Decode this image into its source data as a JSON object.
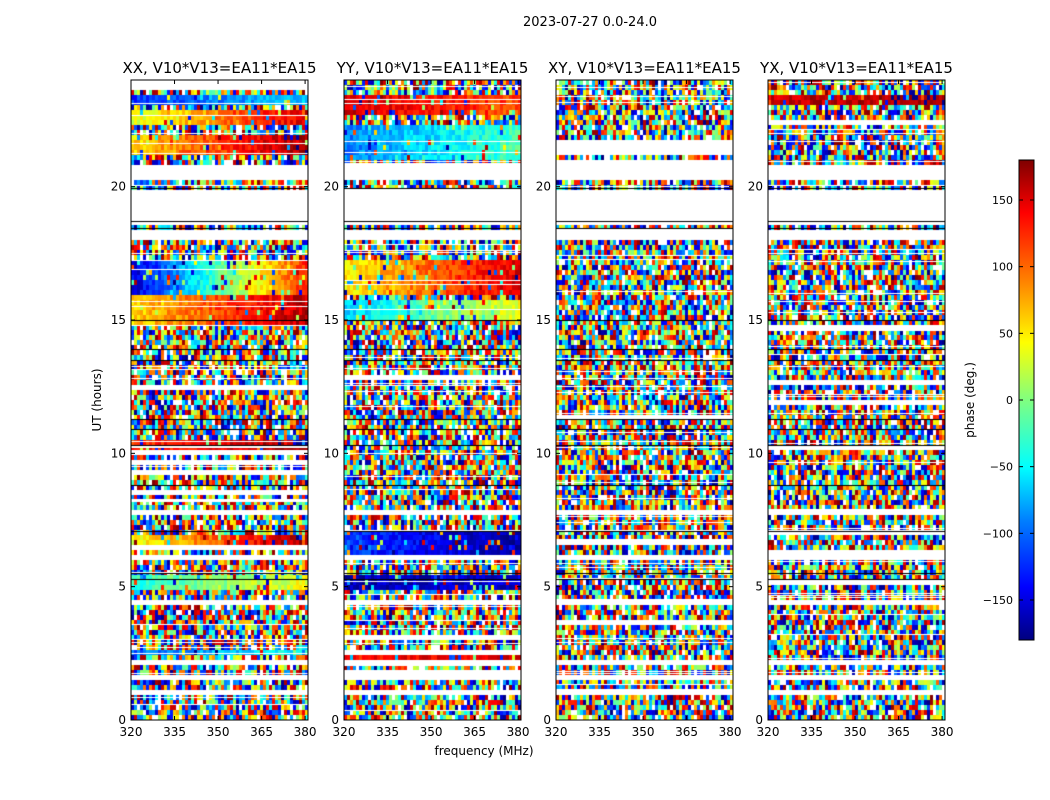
{
  "chart_data": {
    "type": "heatmap",
    "title": "2023-07-27 0.0-24.0",
    "xlabel": "frequency (MHz)",
    "ylabel": "UT (hours)",
    "xlim": [
      320,
      381
    ],
    "ylim": [
      0,
      24
    ],
    "x_ticks": [
      320,
      335,
      350,
      365,
      380
    ],
    "y_ticks": [
      0,
      5,
      10,
      15,
      20
    ],
    "colorbar": {
      "label": "phase (deg.)",
      "range": [
        -180,
        180
      ],
      "ticks": [
        -150,
        -100,
        -50,
        0,
        50,
        100,
        150
      ],
      "tick_labels": [
        "−150",
        "−100",
        "−50",
        "0",
        "50",
        "100",
        "150"
      ],
      "colormap": "jet",
      "colors": [
        "#00007f",
        "#0000ff",
        "#0080ff",
        "#00ffff",
        "#80ff80",
        "#ffff00",
        "#ff8000",
        "#ff0000",
        "#7f0000"
      ]
    },
    "gap_hours": [
      [
        18.6,
        19.9
      ],
      [
        18.0,
        18.35
      ],
      [
        20.2,
        20.75
      ],
      [
        0.9,
        1.1
      ],
      [
        1.55,
        1.7
      ],
      [
        2.05,
        2.25
      ],
      [
        7.75,
        7.9
      ],
      [
        6.0,
        6.1
      ],
      [
        4.4,
        4.55
      ]
    ],
    "rfi_lines_hours": [
      18.45,
      18.7,
      5.3,
      5.5,
      10.3,
      10.9,
      11.3,
      8.8,
      7.1,
      13.5,
      13.9,
      15.0,
      19.95
    ],
    "panels": [
      {
        "title": "XX, V10*V13=EA11*EA15",
        "coherent_bands": [
          {
            "t": [
              23.0,
              23.5
            ],
            "phase": [
              -120,
              -60
            ]
          },
          {
            "t": [
              22.3,
              22.9
            ],
            "phase": [
              30,
              150
            ]
          },
          {
            "t": [
              21.2,
              22.0
            ],
            "phase": [
              60,
              170
            ]
          },
          {
            "t": [
              16.0,
              17.3
            ],
            "phase": [
              -150,
              120
            ]
          },
          {
            "t": [
              14.9,
              15.9
            ],
            "phase": [
              60,
              160
            ]
          },
          {
            "t": [
              10.2,
              10.5
            ],
            "phase": [
              120,
              170
            ]
          },
          {
            "t": [
              6.4,
              7.0
            ],
            "phase": [
              40,
              170
            ]
          },
          {
            "t": [
              4.9,
              5.4
            ],
            "phase": [
              -30,
              40
            ]
          },
          {
            "t": [
              2.35,
              2.7
            ],
            "phase": [
              -100,
              -40
            ]
          }
        ]
      },
      {
        "title": "YY, V10*V13=EA11*EA15",
        "coherent_bands": [
          {
            "t": [
              22.6,
              23.5
            ],
            "phase": [
              150,
              110
            ]
          },
          {
            "t": [
              21.0,
              22.4
            ],
            "phase": [
              -90,
              -20
            ]
          },
          {
            "t": [
              16.0,
              17.2
            ],
            "phase": [
              50,
              150
            ]
          },
          {
            "t": [
              15.0,
              15.8
            ],
            "phase": [
              -60,
              40
            ]
          },
          {
            "t": [
              6.2,
              7.1
            ],
            "phase": [
              -110,
              -170
            ]
          },
          {
            "t": [
              4.8,
              5.4
            ],
            "phase": [
              -160,
              -150
            ]
          },
          {
            "t": [
              2.3,
              2.7
            ],
            "phase": [
              130,
              150
            ]
          }
        ]
      },
      {
        "title": "XY, V10*V13=EA11*EA15",
        "coherent_bands": []
      },
      {
        "title": "YX, V10*V13=EA11*EA15",
        "coherent_bands": [
          {
            "t": [
              23.1,
              23.5
            ],
            "phase": [
              150,
              170
            ]
          }
        ]
      }
    ]
  }
}
